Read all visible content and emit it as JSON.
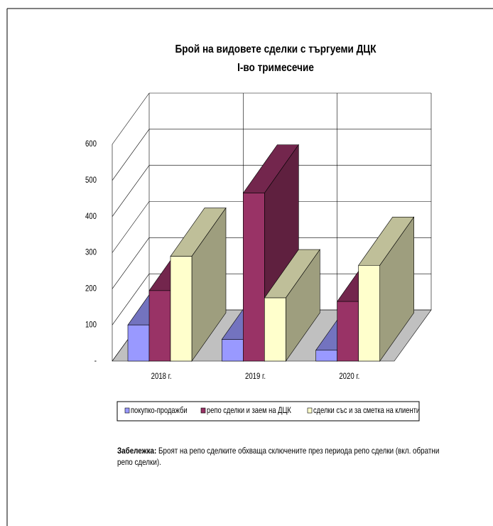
{
  "chart_data": {
    "type": "bar3d",
    "title": "Брой на видовете сделки с търгуеми ДЦК",
    "subtitle": "I-во тримесечие",
    "categories": [
      "2018 г.",
      "2019 г.",
      "2020 г."
    ],
    "series": [
      {
        "name": "покупко-продажби",
        "color": "#9999ff",
        "values": [
          100,
          60,
          30
        ]
      },
      {
        "name": "репо сделки и заем на ДЦК",
        "color": "#993366",
        "values": [
          195,
          465,
          165
        ]
      },
      {
        "name": "сделки със и за сметка на клиенти",
        "color": "#ffffcc",
        "values": [
          290,
          175,
          265
        ]
      }
    ],
    "ylim": [
      0,
      600
    ],
    "yticks": [
      {
        "value": 0,
        "label": "-"
      },
      100,
      200,
      300,
      400,
      500,
      600
    ],
    "grid": true
  },
  "note": {
    "label": "Забележка:",
    "text": "Броят на репо сделките обхваща сключените през периода репо сделки (вкл. обратни репо сделки)."
  }
}
